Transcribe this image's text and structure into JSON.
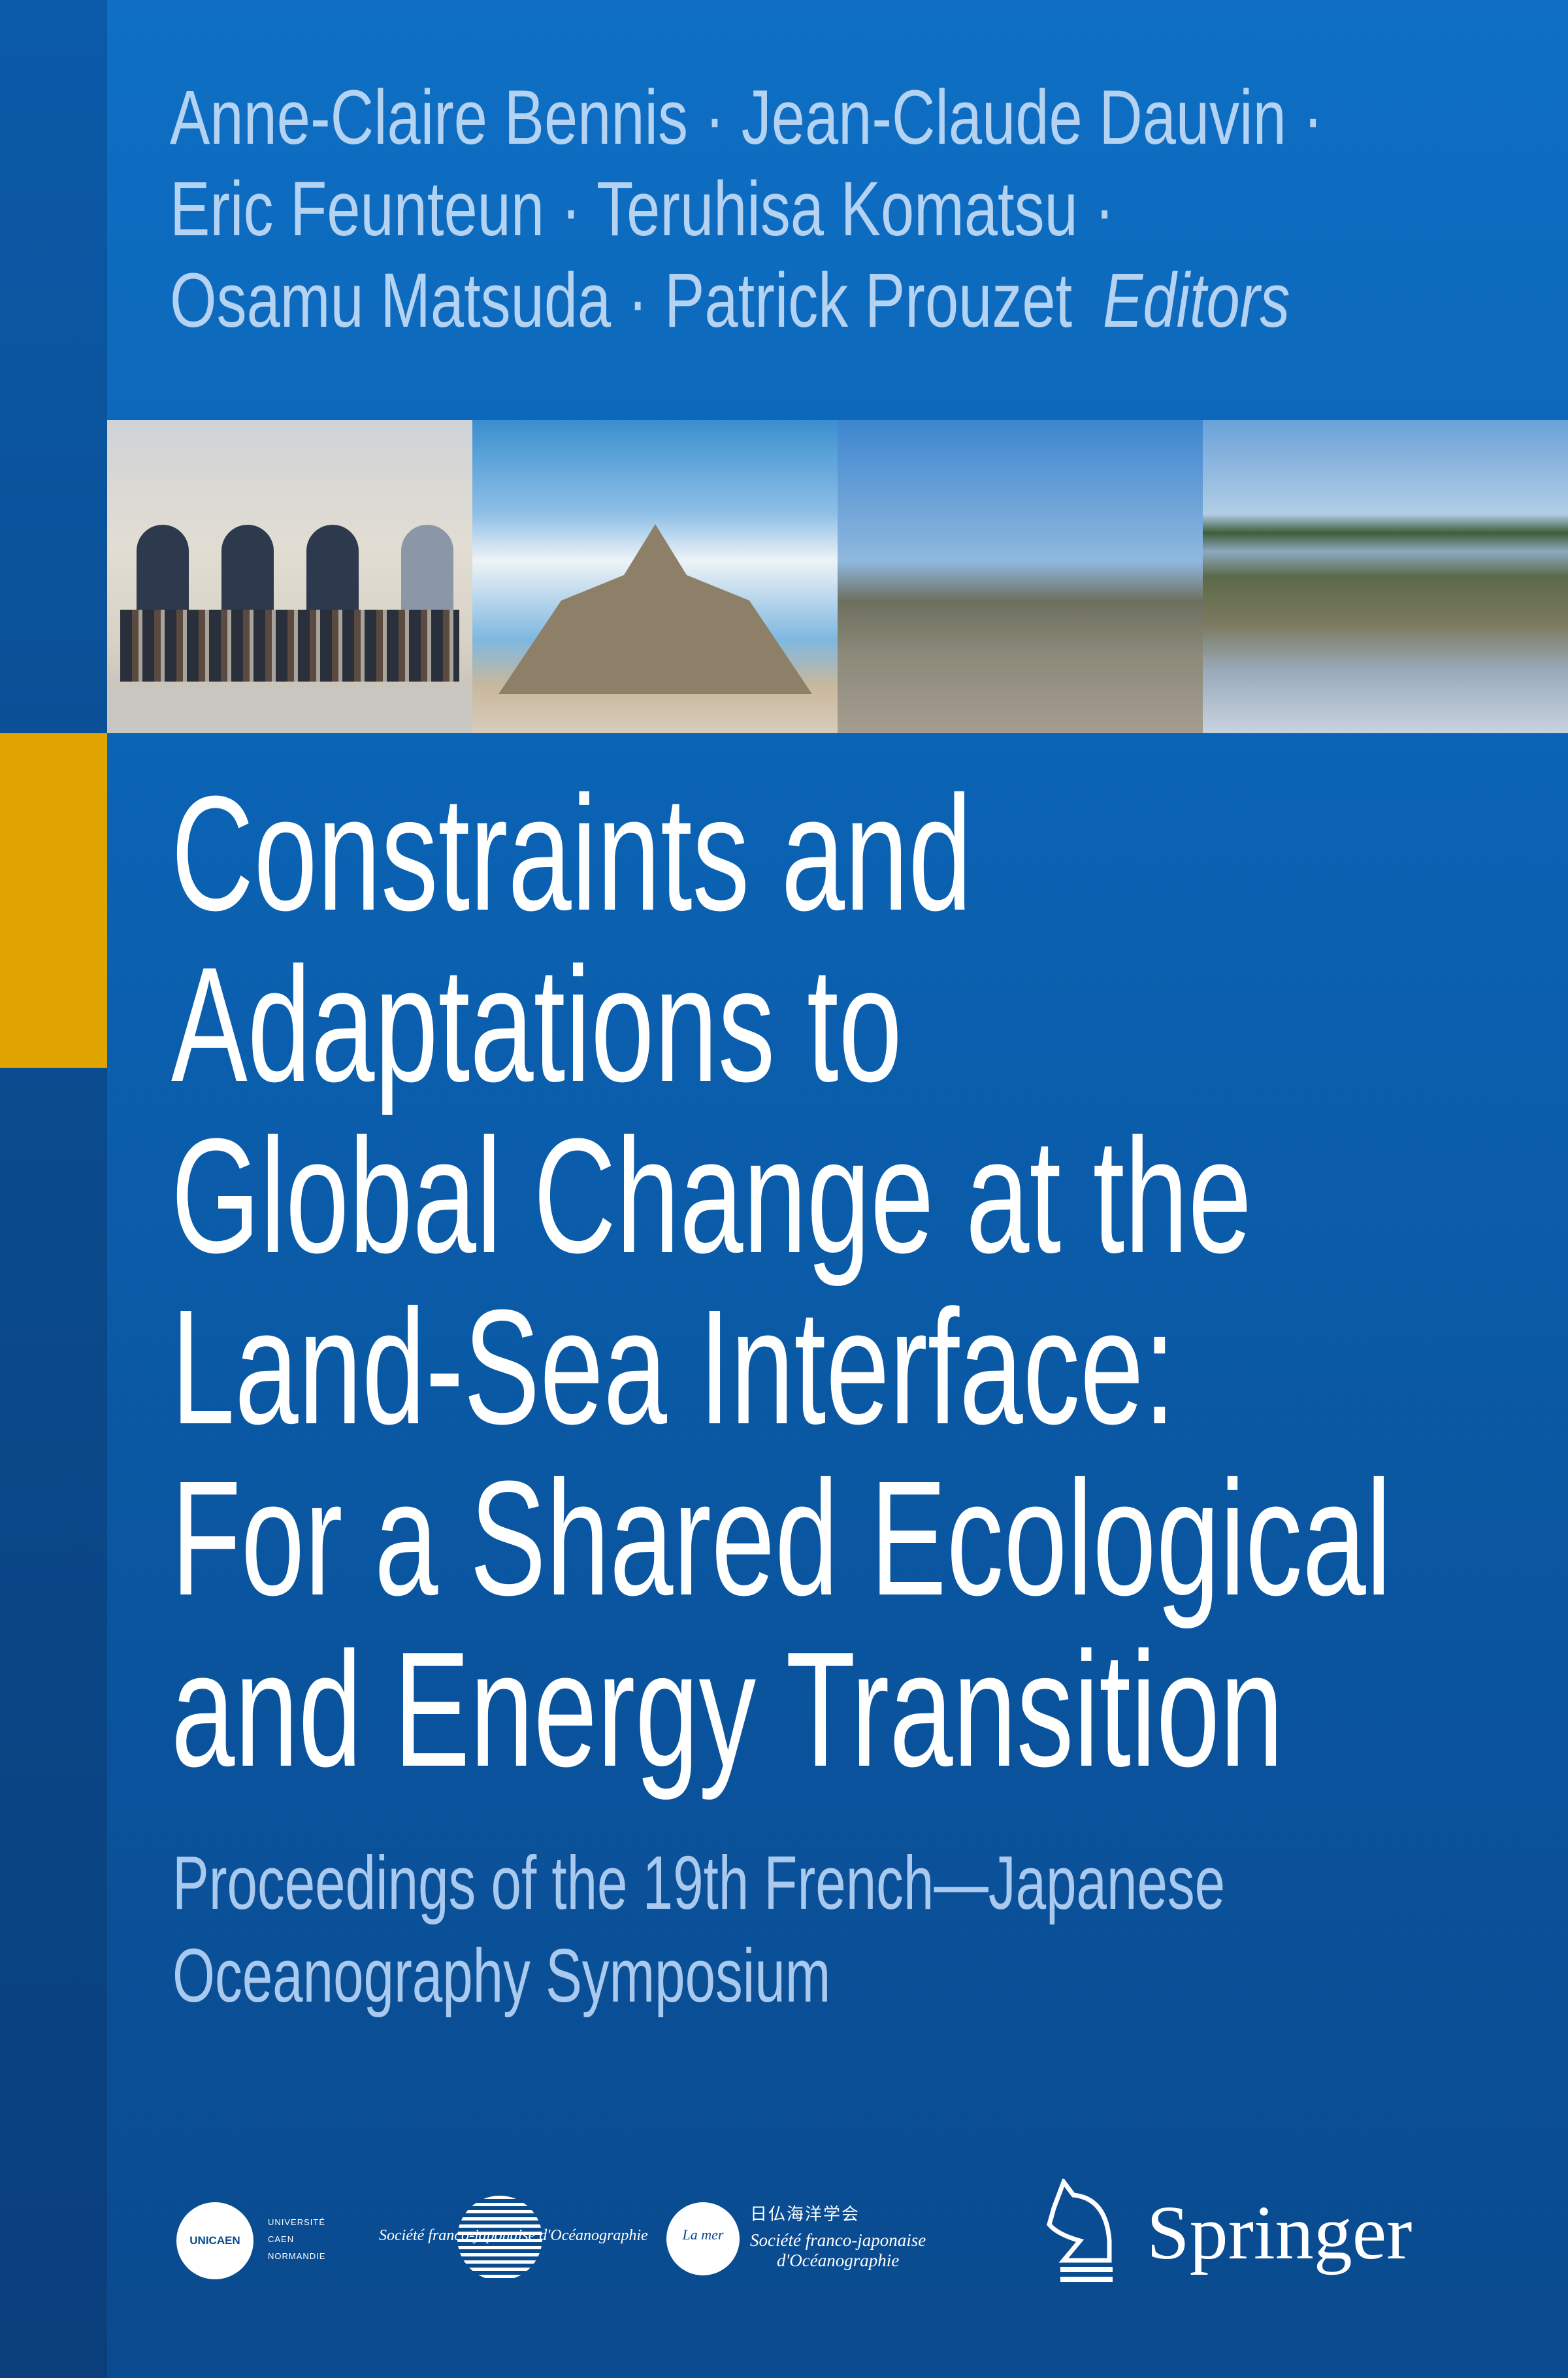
{
  "editors": {
    "lines": [
      "Anne-Claire Bennis · Jean-Claude Dauvin ·",
      "Eric Feunteun · Teruhisa Komatsu ·",
      "Osamu Matsuda · Patrick Prouzet"
    ],
    "role": "Editors"
  },
  "title": {
    "lines": [
      "Constraints and",
      "Adaptations to",
      "Global Change at the",
      "Land-Sea Interface:",
      "For a Shared Ecological",
      "and Energy Transition"
    ]
  },
  "subtitle": {
    "lines": [
      "Proceedings of the 19th French—Japanese",
      "Oceanography Symposium"
    ]
  },
  "logos": {
    "unicaen": {
      "mark": "UNICAEN",
      "lines": [
        "UNIVERSITÉ",
        "CAEN",
        "NORMANDIE"
      ]
    },
    "sfjo": {
      "text": "Société franco-japonaise d'Océanographie"
    },
    "lamer": {
      "mark": "La mer",
      "jp": "日仏海洋学会",
      "lines": [
        "Société franco-japonaise",
        "d'Océanographie"
      ]
    },
    "publisher": "Springer"
  },
  "colors": {
    "background": "#0b62b2",
    "accent": "#e0a400",
    "author_text": "#b4d2f2",
    "subtitle_text": "#a9c9ee"
  }
}
